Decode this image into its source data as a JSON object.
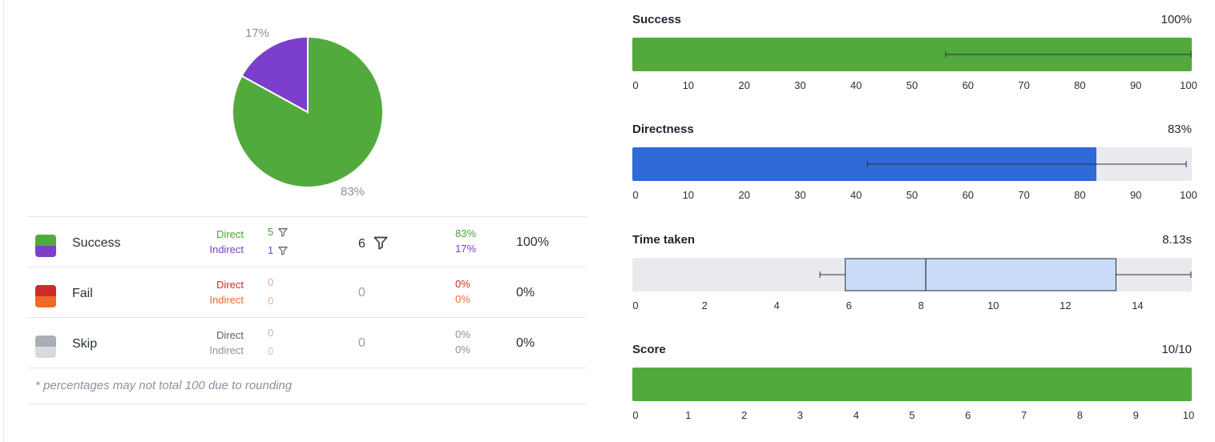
{
  "pie": {
    "label_success": "83%",
    "label_indirect": "17%",
    "colors": {
      "success": "#52aa3c",
      "indirect": "#7b3fcb"
    },
    "chart_data": {
      "type": "pie",
      "values": [
        83,
        17
      ],
      "colors": [
        "#52aa3c",
        "#7b3fcb"
      ]
    }
  },
  "table": {
    "rows": [
      {
        "name": "Success",
        "direct_label": "Direct",
        "indirect_label": "Indirect",
        "direct_count": "5",
        "indirect_count": "1",
        "total": "6",
        "direct_pct": "83%",
        "indirect_pct": "17%",
        "total_pct": "100%",
        "colors": {
          "top": "#52aa3c",
          "bottom": "#7b3fcb",
          "direct": "#4aa33a",
          "indirect": "#7b3fcb",
          "direct_count": "#4aa33a",
          "indirect_count": "#7b3fcb",
          "total": "#2a2f3a"
        },
        "show_filters": true
      },
      {
        "name": "Fail",
        "direct_label": "Direct",
        "indirect_label": "Indirect",
        "direct_count": "0",
        "indirect_count": "0",
        "total": "0",
        "direct_pct": "0%",
        "indirect_pct": "0%",
        "total_pct": "0%",
        "colors": {
          "top": "#cc2b2b",
          "bottom": "#ee6a27",
          "direct": "#cc2b2b",
          "indirect": "#ee6a27",
          "direct_count": "#e8a6a6",
          "indirect_count": "#f3b48e",
          "total": "#9aa0aa"
        },
        "show_filters": false
      },
      {
        "name": "Skip",
        "direct_label": "Direct",
        "indirect_label": "Indirect",
        "direct_count": "0",
        "indirect_count": "0",
        "total": "0",
        "direct_pct": "0%",
        "indirect_pct": "0%",
        "total_pct": "0%",
        "colors": {
          "top": "#a9aeb6",
          "bottom": "#d7dadf",
          "direct": "#5a606b",
          "indirect": "#8b919c",
          "direct_count": "#b3b8c0",
          "indirect_count": "#c3c7cd",
          "total": "#9aa0aa"
        },
        "show_filters": false
      }
    ],
    "footnote": "* percentages may not total 100 due to rounding"
  },
  "metrics": {
    "success": {
      "title": "Success",
      "value": "100%",
      "chart_data": {
        "type": "bar",
        "value": 100,
        "xlim": [
          0,
          100
        ],
        "ticks": [
          0,
          10,
          20,
          30,
          40,
          50,
          60,
          70,
          80,
          90,
          100
        ],
        "error_range": [
          56,
          100
        ],
        "color": "#52aa3c"
      }
    },
    "directness": {
      "title": "Directness",
      "value": "83%",
      "chart_data": {
        "type": "bar",
        "value": 83,
        "xlim": [
          0,
          100
        ],
        "ticks": [
          0,
          10,
          20,
          30,
          40,
          50,
          60,
          70,
          80,
          90,
          100
        ],
        "error_range": [
          42,
          99
        ],
        "color": "#2f6ad9"
      }
    },
    "time": {
      "title": "Time taken",
      "value": "8.13s",
      "chart_data": {
        "type": "box",
        "xlim": [
          0,
          15.5
        ],
        "ticks": [
          0,
          2,
          4,
          6,
          8,
          10,
          12,
          14
        ],
        "whisker_low": 5.2,
        "q1": 5.9,
        "median": 8.13,
        "q3": 13.4,
        "whisker_high": 15.5,
        "box_color": "#c8dcf7"
      }
    },
    "score": {
      "title": "Score",
      "value": "10/10",
      "chart_data": {
        "type": "bar",
        "value": 10,
        "xlim": [
          0,
          10
        ],
        "ticks": [
          0,
          1,
          2,
          3,
          4,
          5,
          6,
          7,
          8,
          9,
          10
        ],
        "color": "#52aa3c"
      }
    }
  }
}
